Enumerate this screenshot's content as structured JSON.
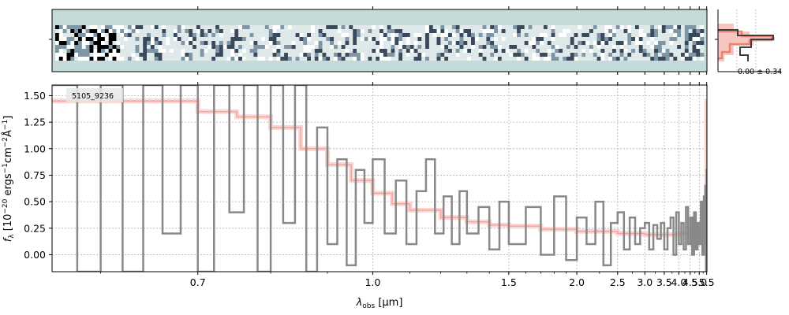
{
  "figure": {
    "colors": {
      "spectrum": "#888888",
      "model": "#f4a6a0",
      "model_band": "#fbd5d1",
      "strip_bg": "#c4dbd9",
      "grid": "#b0b0b0",
      "hist_fill": "#f4c6bf",
      "hist_line": "#f08070",
      "hist_dark": "#3c3c3c"
    }
  },
  "chart_data": [
    {
      "type": "heatmap",
      "panel": "2d-spectrum",
      "title": "",
      "note": "2D dispersed spectrum strip, dark high-noise columns at blue end"
    },
    {
      "type": "line",
      "panel": "1d-spectrum",
      "title": "",
      "annotation": "5105_9236",
      "xlabel_main": "λ",
      "xlabel_sub": "obs",
      "xlabel_unit": " [μm]",
      "ylabel_prefix": "f",
      "ylabel_sub": "λ",
      "ylabel_unit": " [10",
      "ylabel_exp": "−20",
      "ylabel_rest": " ergs",
      "ylabel_exp2": "−1",
      "ylabel_rest2": "cm",
      "ylabel_exp3": "−2",
      "ylabel_rest3": "Å",
      "ylabel_exp4": "−1",
      "ylabel_end": "]",
      "xscale": "reciprocal",
      "xlim": [
        0.56,
        5.52
      ],
      "ylim": [
        -0.16,
        1.6
      ],
      "xticks": [
        0.7,
        1.0,
        1.5,
        2.0,
        2.5,
        3.0,
        3.5,
        4.0,
        4.5,
        5.0,
        5.5
      ],
      "xtick_labels": [
        "0.7",
        "1.0",
        "1.5",
        "2.0",
        "2.5",
        "3.0",
        "3.5",
        "4.0",
        "4.5",
        "5.0",
        "5.5"
      ],
      "xticks_minor": [
        0.6,
        0.8,
        0.9,
        1.1,
        1.2,
        1.3,
        1.4,
        1.6,
        1.7,
        1.8,
        1.9,
        2.25,
        2.75,
        3.25,
        3.75,
        4.25,
        4.75,
        5.25
      ],
      "yticks": [
        0.0,
        0.25,
        0.5,
        0.75,
        1.0,
        1.25,
        1.5
      ],
      "ytick_labels": [
        "0.00",
        "0.25",
        "0.50",
        "0.75",
        "1.00",
        "1.25",
        "1.50"
      ],
      "grid": true,
      "series": [
        {
          "kind": "model",
          "x": [
            0.56,
            0.7,
            0.75,
            0.8,
            0.85,
            0.9,
            0.95,
            1.0,
            1.05,
            1.1,
            1.2,
            1.3,
            1.4,
            1.5,
            1.7,
            2.0,
            2.5,
            3.0,
            3.5,
            4.0,
            4.5,
            5.0,
            5.3,
            5.4,
            5.47,
            5.5
          ],
          "y": [
            1.45,
            1.35,
            1.3,
            1.2,
            1.0,
            0.85,
            0.7,
            0.58,
            0.48,
            0.42,
            0.35,
            0.31,
            0.28,
            0.27,
            0.24,
            0.22,
            0.2,
            0.19,
            0.19,
            0.2,
            0.21,
            0.24,
            0.28,
            0.35,
            0.6,
            1.45
          ]
        },
        {
          "kind": "spectrum",
          "x": [
            0.56,
            0.58,
            0.6,
            0.62,
            0.64,
            0.66,
            0.68,
            0.7,
            0.72,
            0.74,
            0.76,
            0.78,
            0.8,
            0.82,
            0.84,
            0.86,
            0.88,
            0.9,
            0.92,
            0.94,
            0.96,
            0.98,
            1.0,
            1.03,
            1.06,
            1.09,
            1.12,
            1.15,
            1.18,
            1.21,
            1.24,
            1.27,
            1.3,
            1.35,
            1.4,
            1.45,
            1.5,
            1.6,
            1.7,
            1.8,
            1.9,
            2.0,
            2.1,
            2.2,
            2.3,
            2.4,
            2.5,
            2.6,
            2.7,
            2.8,
            2.9,
            3.0,
            3.1,
            3.2,
            3.3,
            3.4,
            3.5,
            3.6,
            3.7,
            3.8,
            3.9,
            4.0,
            4.1,
            4.2,
            4.3,
            4.4,
            4.5,
            4.6,
            4.7,
            4.8,
            4.9,
            5.0,
            5.1,
            5.2,
            5.3,
            5.35,
            5.4,
            5.45,
            5.5
          ],
          "y": [
            1.6,
            -0.16,
            1.6,
            -0.16,
            1.6,
            0.2,
            1.6,
            -0.16,
            1.6,
            0.4,
            1.6,
            -0.16,
            1.6,
            0.3,
            1.6,
            -0.16,
            1.2,
            0.1,
            0.9,
            -0.1,
            0.8,
            0.3,
            0.9,
            0.2,
            0.7,
            0.1,
            0.6,
            0.9,
            0.2,
            0.55,
            0.1,
            0.6,
            0.2,
            0.45,
            0.05,
            0.5,
            0.1,
            0.45,
            0.0,
            0.55,
            -0.05,
            0.35,
            0.1,
            0.5,
            -0.1,
            0.3,
            0.4,
            0.05,
            0.35,
            0.1,
            0.25,
            0.3,
            0.05,
            0.28,
            0.15,
            0.3,
            0.05,
            0.25,
            0.35,
            0.0,
            0.4,
            0.1,
            0.3,
            0.05,
            0.45,
            0.1,
            0.35,
            0.0,
            0.4,
            0.05,
            0.3,
            0.1,
            0.5,
            0.0,
            0.55,
            0.1,
            0.65,
            -0.16,
            0.8
          ]
        }
      ]
    },
    {
      "type": "bar",
      "panel": "profile-histogram",
      "title": "",
      "annotation": "0.00 ± 0.34"
    }
  ]
}
